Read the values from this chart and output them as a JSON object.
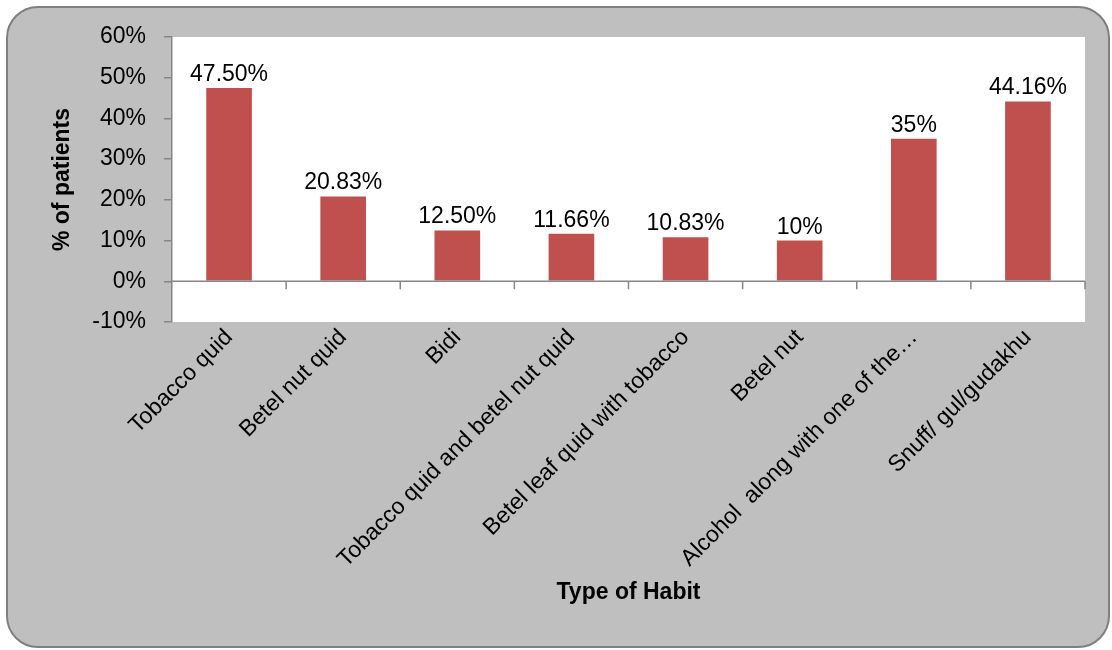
{
  "chart_data": {
    "type": "bar",
    "xlabel": "Type of Habit",
    "ylabel": "% of patients",
    "categories": [
      "Tobacco quid",
      "Betel nut quid",
      "Bidi",
      "Tobacco quid and betel nut quid",
      "Betel leaf quid with tobacco",
      "Betel nut",
      "Alcohol  along with one of the…",
      "Snuff/ gul/gudakhu"
    ],
    "values": [
      47.5,
      20.83,
      12.5,
      11.66,
      10.83,
      10,
      35,
      44.16
    ],
    "value_labels": [
      "47.50%",
      "20.83%",
      "12.50%",
      "11.66%",
      "10.83%",
      "10%",
      "35%",
      "44.16%"
    ],
    "color": "#c0504d",
    "ylim": [
      -10,
      60
    ],
    "yticks": [
      {
        "value": -10,
        "label": "-10%"
      },
      {
        "value": 0,
        "label": "0%"
      },
      {
        "value": 10,
        "label": "10%"
      },
      {
        "value": 20,
        "label": "20%"
      },
      {
        "value": 30,
        "label": "30%"
      },
      {
        "value": 40,
        "label": "40%"
      },
      {
        "value": 50,
        "label": "50%"
      },
      {
        "value": 60,
        "label": "60%"
      }
    ]
  }
}
